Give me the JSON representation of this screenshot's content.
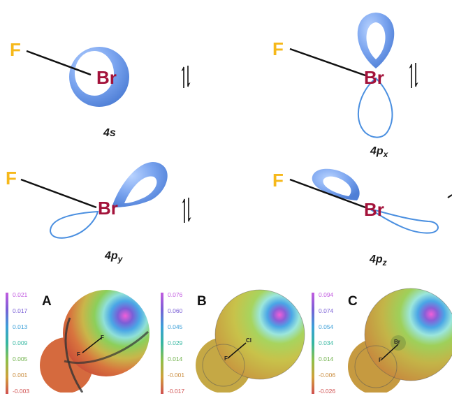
{
  "orbitals": [
    {
      "id": "4s",
      "label_main": "4s",
      "label_sub": "",
      "atom1": "F",
      "atom2": "Br"
    },
    {
      "id": "4px",
      "label_main": "4p",
      "label_sub": "x",
      "atom1": "F",
      "atom2": "Br"
    },
    {
      "id": "4py",
      "label_main": "4p",
      "label_sub": "y",
      "atom1": "F",
      "atom2": "Br"
    },
    {
      "id": "4pz",
      "label_main": "4p",
      "label_sub": "z",
      "atom1": "F",
      "atom2": "Br"
    }
  ],
  "maps": [
    {
      "letter": "A",
      "ticks": [
        "0.021",
        "0.017",
        "0.013",
        "0.009",
        "0.005",
        "0.001",
        "-0.003"
      ],
      "atom1": "F",
      "atom2": "F"
    },
    {
      "letter": "B",
      "ticks": [
        "0.076",
        "0.060",
        "0.045",
        "0.029",
        "0.014",
        "-0.001",
        "-0.017"
      ],
      "atom1": "F",
      "atom2": "Cl"
    },
    {
      "letter": "C",
      "ticks": [
        "0.094",
        "0.074",
        "0.054",
        "0.034",
        "0.014",
        "-0.006",
        "-0.026"
      ],
      "atom1": "F",
      "atom2": "Br"
    }
  ],
  "colors": {
    "fluorine": "#f6b81a",
    "bromine": "#a3123a",
    "lobe_fill": "#6f9bea",
    "lobe_outline": "#4a8fe0",
    "tick_colors": [
      "#c25be0",
      "#7a5fd6",
      "#3b9fd8",
      "#35b7a1",
      "#6fb14a",
      "#c98a3a",
      "#d05050"
    ]
  }
}
